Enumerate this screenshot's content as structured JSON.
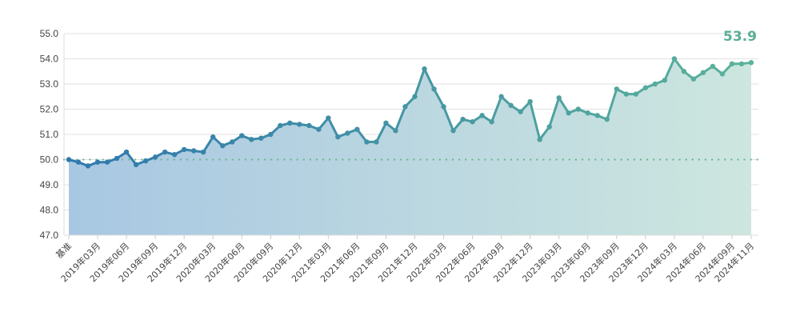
{
  "chart_data": {
    "type": "area",
    "title": "",
    "xlabel": "",
    "ylabel": "",
    "ylim": [
      47.0,
      55.0
    ],
    "yticks": [
      "47.0",
      "48.0",
      "49.0",
      "50.0",
      "51.0",
      "52.0",
      "53.0",
      "54.0",
      "55.0"
    ],
    "grid": true,
    "baseline": 50.0,
    "last_value_label": "53.9",
    "colors": {
      "start": "#2f78ad",
      "end": "#5bb39a",
      "fill_start": "#a8c7e2",
      "fill_end": "#cde6df",
      "baseline": "#6ab58f"
    },
    "categories": [
      "基准",
      "2019年01月",
      "2019年02月",
      "2019年03月",
      "2019年04月",
      "2019年05月",
      "2019年06月",
      "2019年07月",
      "2019年08月",
      "2019年09月",
      "2019年10月",
      "2019年11月",
      "2019年12月",
      "2020年01月",
      "2020年02月",
      "2020年03月",
      "2020年04月",
      "2020年05月",
      "2020年06月",
      "2020年07月",
      "2020年08月",
      "2020年09月",
      "2020年10月",
      "2020年11月",
      "2020年12月",
      "2021年01月",
      "2021年02月",
      "2021年03月",
      "2021年04月",
      "2021年05月",
      "2021年06月",
      "2021年07月",
      "2021年08月",
      "2021年09月",
      "2021年10月",
      "2021年11月",
      "2021年12月",
      "2022年01月",
      "2022年02月",
      "2022年03月",
      "2022年04月",
      "2022年05月",
      "2022年06月",
      "2022年07月",
      "2022年08月",
      "2022年09月",
      "2022年10月",
      "2022年11月",
      "2022年12月",
      "2023年01月",
      "2023年02月",
      "2023年03月",
      "2023年04月",
      "2023年05月",
      "2023年06月",
      "2023年07月",
      "2023年08月",
      "2023年09月",
      "2023年10月",
      "2023年11月",
      "2023年12月",
      "2024年01月",
      "2024年02月",
      "2024年03月",
      "2024年04月",
      "2024年05月",
      "2024年06月",
      "2024年07月",
      "2024年08月",
      "2024年09月",
      "2024年10月",
      "2024年11月"
    ],
    "tick_labels": [
      "基准",
      "2019年03月",
      "2019年06月",
      "2019年09月",
      "2019年12月",
      "2020年03月",
      "2020年06月",
      "2020年09月",
      "2020年12月",
      "2021年03月",
      "2021年06月",
      "2021年09月",
      "2021年12月",
      "2022年03月",
      "2022年06月",
      "2022年09月",
      "2022年12月",
      "2023年03月",
      "2023年06月",
      "2023年09月",
      "2023年12月",
      "2024年03月",
      "2024年06月",
      "2024年09月",
      "2024年11月"
    ],
    "values": [
      50.0,
      49.9,
      49.75,
      49.9,
      49.9,
      50.05,
      50.3,
      49.8,
      49.95,
      50.1,
      50.3,
      50.2,
      50.4,
      50.35,
      50.3,
      50.9,
      50.55,
      50.7,
      50.95,
      50.8,
      50.85,
      51.0,
      51.35,
      51.45,
      51.4,
      51.35,
      51.2,
      51.65,
      50.9,
      51.05,
      51.2,
      50.7,
      50.7,
      51.45,
      51.15,
      52.1,
      52.5,
      53.6,
      52.8,
      52.1,
      51.15,
      51.6,
      51.5,
      51.75,
      51.5,
      52.5,
      52.15,
      51.9,
      52.3,
      50.8,
      51.3,
      52.45,
      51.85,
      52.0,
      51.85,
      51.75,
      51.6,
      52.8,
      52.6,
      52.6,
      52.85,
      53.0,
      53.15,
      54.0,
      53.5,
      53.2,
      53.45,
      53.7,
      53.4,
      53.8,
      53.8,
      53.85
    ]
  }
}
